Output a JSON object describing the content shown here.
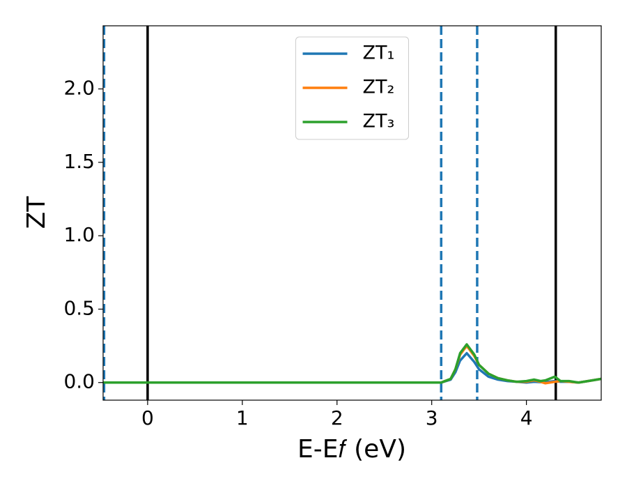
{
  "chart_data": {
    "type": "line",
    "xlabel": "E-E𝑓 (eV)",
    "ylabel": "ZT",
    "x": [
      -0.47,
      3.0,
      3.1,
      3.2,
      3.25,
      3.3,
      3.37,
      3.45,
      3.5,
      3.6,
      3.7,
      3.8,
      3.9,
      4.0,
      4.08,
      4.15,
      4.2,
      4.3,
      4.36,
      4.45,
      4.55,
      4.65,
      4.79
    ],
    "series": [
      {
        "name": "ZT₁",
        "color": "#1f77b4",
        "values": [
          0,
          0,
          0,
          0.02,
          0.07,
          0.15,
          0.2,
          0.14,
          0.09,
          0.04,
          0.02,
          0.01,
          0.005,
          0,
          0.005,
          0.003,
          0.003,
          0.01,
          0.005,
          0.005,
          0,
          0.01,
          0.025
        ]
      },
      {
        "name": "ZT₂",
        "color": "#ff7f0e",
        "values": [
          0,
          0,
          0,
          0.025,
          0.09,
          0.19,
          0.25,
          0.18,
          0.12,
          0.06,
          0.03,
          0.015,
          0.005,
          0.005,
          0.015,
          0.005,
          -0.005,
          0.005,
          0.01,
          0.005,
          0,
          0.01,
          0.025
        ]
      },
      {
        "name": "ZT₃",
        "color": "#2ca02c",
        "values": [
          0,
          0,
          0,
          0.025,
          0.09,
          0.2,
          0.26,
          0.19,
          0.12,
          0.06,
          0.03,
          0.015,
          0.005,
          0.01,
          0.02,
          0.01,
          0.015,
          0.04,
          0.01,
          0.01,
          0,
          0.01,
          0.025
        ]
      }
    ],
    "vlines": [
      {
        "x": -0.46,
        "color": "#1f77b4",
        "style": "dashed"
      },
      {
        "x": 0,
        "color": "#000000",
        "style": "solid"
      },
      {
        "x": 3.1,
        "color": "#1f77b4",
        "style": "dashed"
      },
      {
        "x": 3.48,
        "color": "#1f77b4",
        "style": "dashed"
      },
      {
        "x": 4.31,
        "color": "#000000",
        "style": "solid"
      }
    ],
    "xlim": [
      -0.47,
      4.79
    ],
    "ylim": [
      -0.12,
      2.43
    ],
    "xticks": [
      0,
      1,
      2,
      3,
      4
    ],
    "yticks": [
      {
        "value": 0,
        "label": "0.0"
      },
      {
        "value": 0.5,
        "label": "0.5"
      },
      {
        "value": 1,
        "label": "1.0"
      },
      {
        "value": 1.5,
        "label": "1.5"
      },
      {
        "value": 2,
        "label": "2.0"
      }
    ],
    "legend": "upper center",
    "grid": false
  }
}
